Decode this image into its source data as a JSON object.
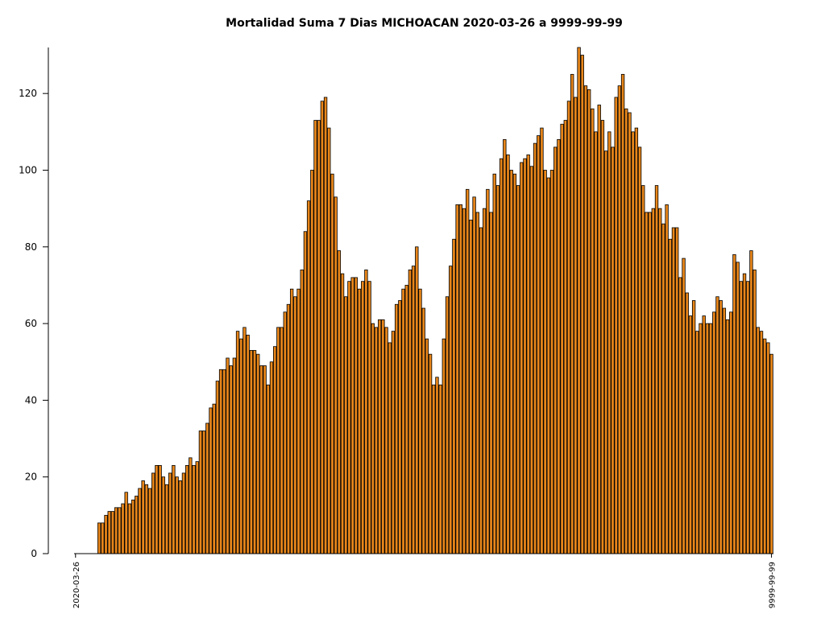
{
  "chart_data": {
    "type": "bar",
    "title": "Mortalidad Suma 7 Dias MICHOACAN 2020-03-26 a 9999-99-99",
    "xlabel": "",
    "ylabel": "",
    "ylim": [
      0,
      132
    ],
    "yticks": [
      0,
      20,
      40,
      60,
      80,
      100,
      120
    ],
    "grid": false,
    "bar_color": "#e8861a",
    "bar_edge_color": "#000000",
    "x_start_label": "2020-03-26",
    "x_end_label": "9999-99-99",
    "values": [
      0,
      0,
      0,
      0,
      0,
      0,
      0,
      8,
      8,
      10,
      11,
      11,
      12,
      12,
      13,
      16,
      13,
      14,
      15,
      17,
      19,
      18,
      17,
      21,
      23,
      23,
      20,
      18,
      21,
      23,
      20,
      19,
      21,
      23,
      25,
      23,
      24,
      32,
      32,
      34,
      38,
      39,
      45,
      48,
      48,
      51,
      49,
      51,
      58,
      56,
      59,
      57,
      53,
      53,
      52,
      49,
      49,
      44,
      50,
      54,
      59,
      59,
      63,
      65,
      69,
      67,
      69,
      74,
      84,
      92,
      100,
      113,
      113,
      118,
      119,
      111,
      99,
      93,
      79,
      73,
      67,
      71,
      72,
      72,
      69,
      71,
      74,
      71,
      60,
      59,
      61,
      61,
      59,
      55,
      58,
      65,
      66,
      69,
      70,
      74,
      75,
      80,
      69,
      64,
      56,
      52,
      44,
      46,
      44,
      56,
      67,
      75,
      82,
      91,
      91,
      90,
      95,
      87,
      93,
      89,
      85,
      90,
      95,
      89,
      99,
      96,
      103,
      108,
      104,
      100,
      99,
      96,
      102,
      103,
      104,
      101,
      107,
      109,
      111,
      100,
      98,
      100,
      106,
      108,
      112,
      113,
      118,
      125,
      119,
      132,
      130,
      122,
      121,
      116,
      110,
      117,
      113,
      105,
      110,
      106,
      119,
      122,
      125,
      116,
      115,
      110,
      111,
      106,
      96,
      89,
      89,
      90,
      96,
      90,
      86,
      91,
      82,
      85,
      85,
      72,
      77,
      68,
      62,
      66,
      58,
      60,
      62,
      60,
      60,
      63,
      67,
      66,
      64,
      61,
      63,
      78,
      76,
      71,
      73,
      71,
      79,
      74,
      59,
      58,
      56,
      55,
      52
    ]
  }
}
